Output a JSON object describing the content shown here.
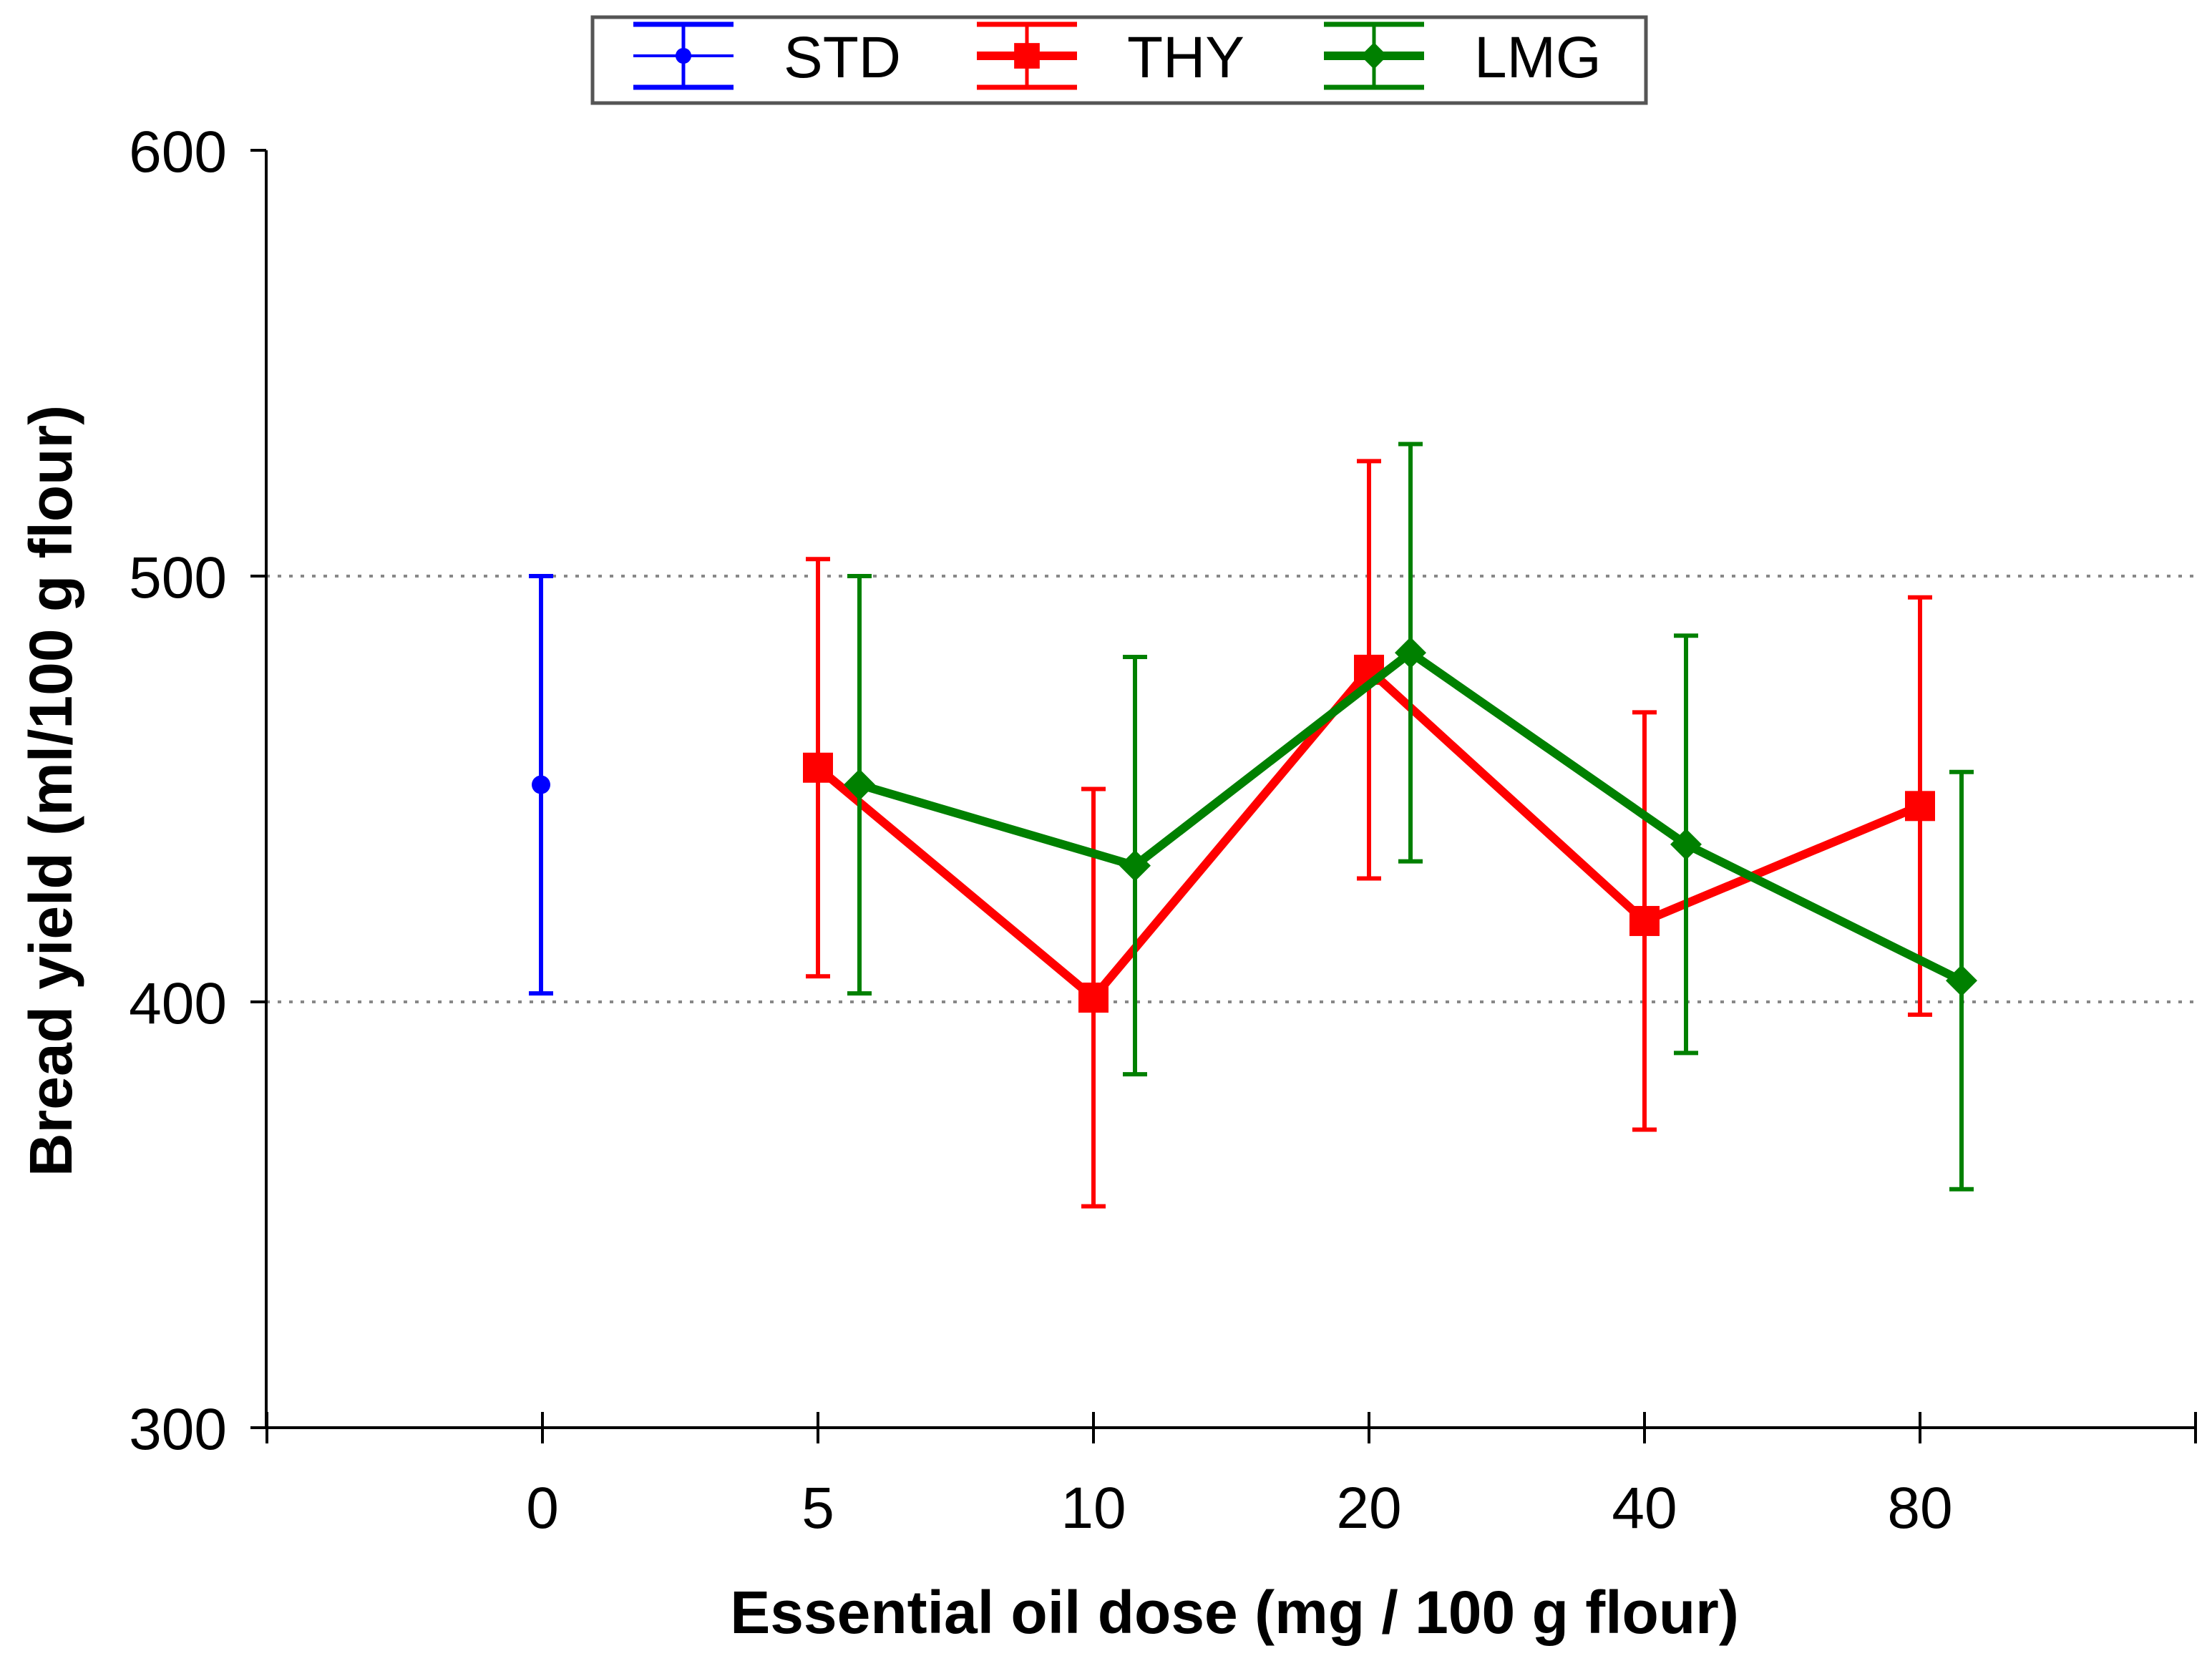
{
  "chart_data": {
    "type": "line",
    "title": "",
    "xlabel": "Essential oil dose (mg / 100 g flour)",
    "ylabel": "Bread yield (ml/100 g flour)",
    "categories": [
      "0",
      "5",
      "10",
      "20",
      "40",
      "80"
    ],
    "ylim": [
      300,
      600
    ],
    "yticks": [
      300,
      400,
      500,
      600
    ],
    "gridlines_y": [
      400,
      500
    ],
    "legend_position": "top-center",
    "series": [
      {
        "name": "STD",
        "color": "#0000ff",
        "marker": "circle",
        "x": [
          "0"
        ],
        "values": [
          451
        ],
        "errors": [
          49
        ]
      },
      {
        "name": "THY",
        "color": "#ff0000",
        "marker": "square",
        "x": [
          "5",
          "10",
          "20",
          "40",
          "80"
        ],
        "values": [
          455,
          401,
          478,
          419,
          446
        ],
        "errors": [
          49,
          49,
          49,
          49,
          49
        ]
      },
      {
        "name": "LMG",
        "color": "#008000",
        "marker": "diamond",
        "x": [
          "5",
          "10",
          "20",
          "40",
          "80"
        ],
        "values": [
          451,
          432,
          482,
          437,
          405
        ],
        "errors": [
          49,
          49,
          49,
          49,
          49
        ]
      }
    ]
  }
}
